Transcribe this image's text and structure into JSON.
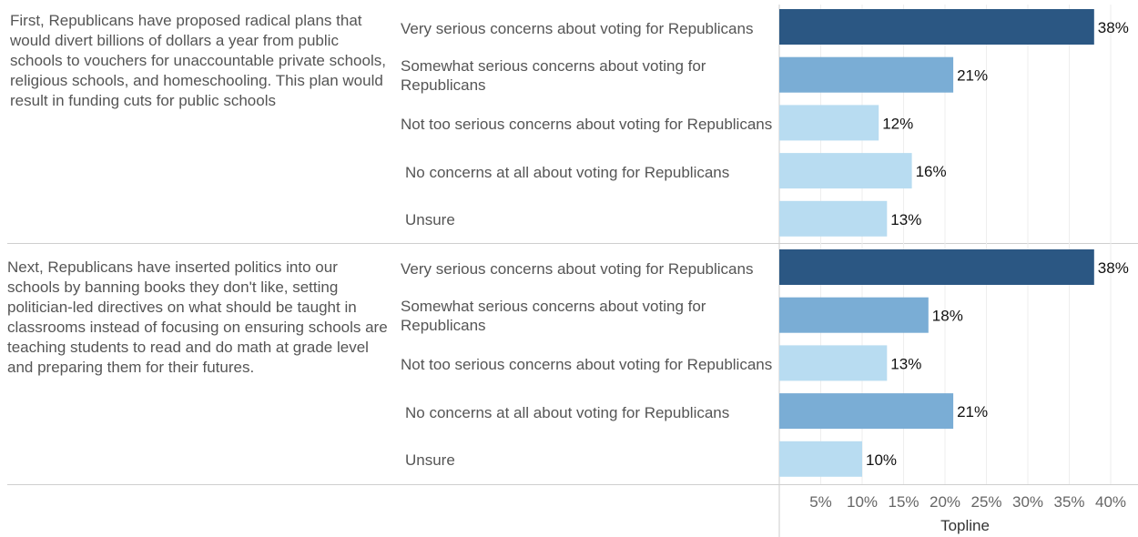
{
  "chart_data": {
    "type": "bar",
    "orientation": "horizontal",
    "xlabel": "Topline",
    "xlim": [
      0,
      0.42
    ],
    "xticks": [
      0.05,
      0.1,
      0.15,
      0.2,
      0.25,
      0.3,
      0.35,
      0.4
    ],
    "xtick_labels": [
      "5%",
      "10%",
      "15%",
      "20%",
      "25%",
      "30%",
      "35%",
      "40%"
    ],
    "grid": true,
    "panels": [
      {
        "question": " First, Republicans have proposed radical plans that would divert billions of dollars a year from public schools to vouchers for unaccountable private schools, religious schools, and homeschooling. This plan would result in funding cuts for public schools",
        "categories": [
          "Very serious concerns about voting for Republicans",
          "Somewhat serious concerns about voting for Republicans",
          "Not too serious concerns about voting for Republicans",
          "No concerns at all about voting for Republicans",
          "Unsure"
        ],
        "values": [
          0.38,
          0.21,
          0.12,
          0.16,
          0.13
        ],
        "value_labels": [
          "38%",
          "21%",
          "12%",
          "16%",
          "13%"
        ]
      },
      {
        "question": "Next, Republicans have inserted politics into our schools by banning books they don't like, setting politician-led directives on what should be taught in classrooms instead of focusing on ensuring schools are teaching students to read and do math at grade level and preparing them for their futures.",
        "categories": [
          "Very serious concerns about voting for Republicans",
          "Somewhat serious concerns about voting for Republicans",
          "Not too serious concerns about voting for Republicans",
          "No concerns at all about voting for Republicans",
          "Unsure"
        ],
        "values": [
          0.38,
          0.18,
          0.13,
          0.21,
          0.1
        ],
        "value_labels": [
          "38%",
          "18%",
          "13%",
          "21%",
          "10%"
        ]
      }
    ],
    "colors": {
      "dark": "#2b5783",
      "medium": "#7aadd5",
      "light": "#b8dcf1",
      "grid": "#eeeeee",
      "axis": "#cccccc",
      "tick_text": "#666666",
      "value_text": "#111111"
    }
  }
}
